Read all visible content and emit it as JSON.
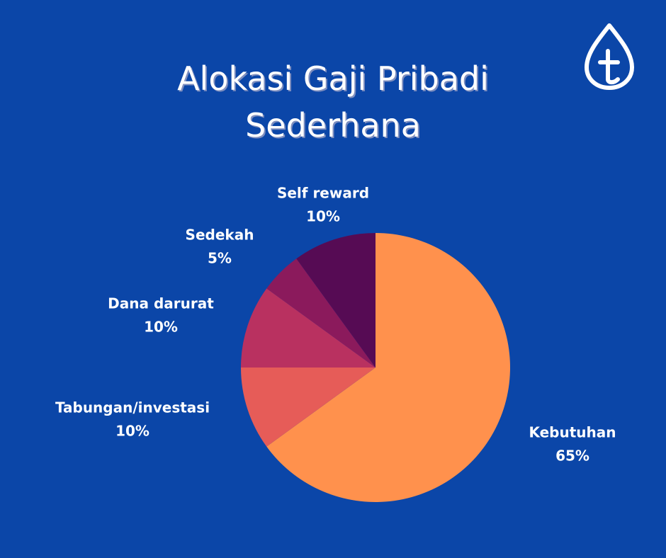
{
  "chart_data": {
    "type": "pie",
    "title": "Alokasi Gaji Pribadi Sederhana",
    "categories": [
      "Kebutuhan",
      "Tabungan/investasi",
      "Dana darurat",
      "Sedekah",
      "Self reward"
    ],
    "values": [
      65,
      10,
      10,
      5,
      10
    ],
    "value_labels": [
      "65%",
      "10%",
      "10%",
      "5%",
      "10%"
    ],
    "colors": [
      "#ff914d",
      "#e65c58",
      "#b93160",
      "#8b1a5c",
      "#560b54"
    ]
  }
}
